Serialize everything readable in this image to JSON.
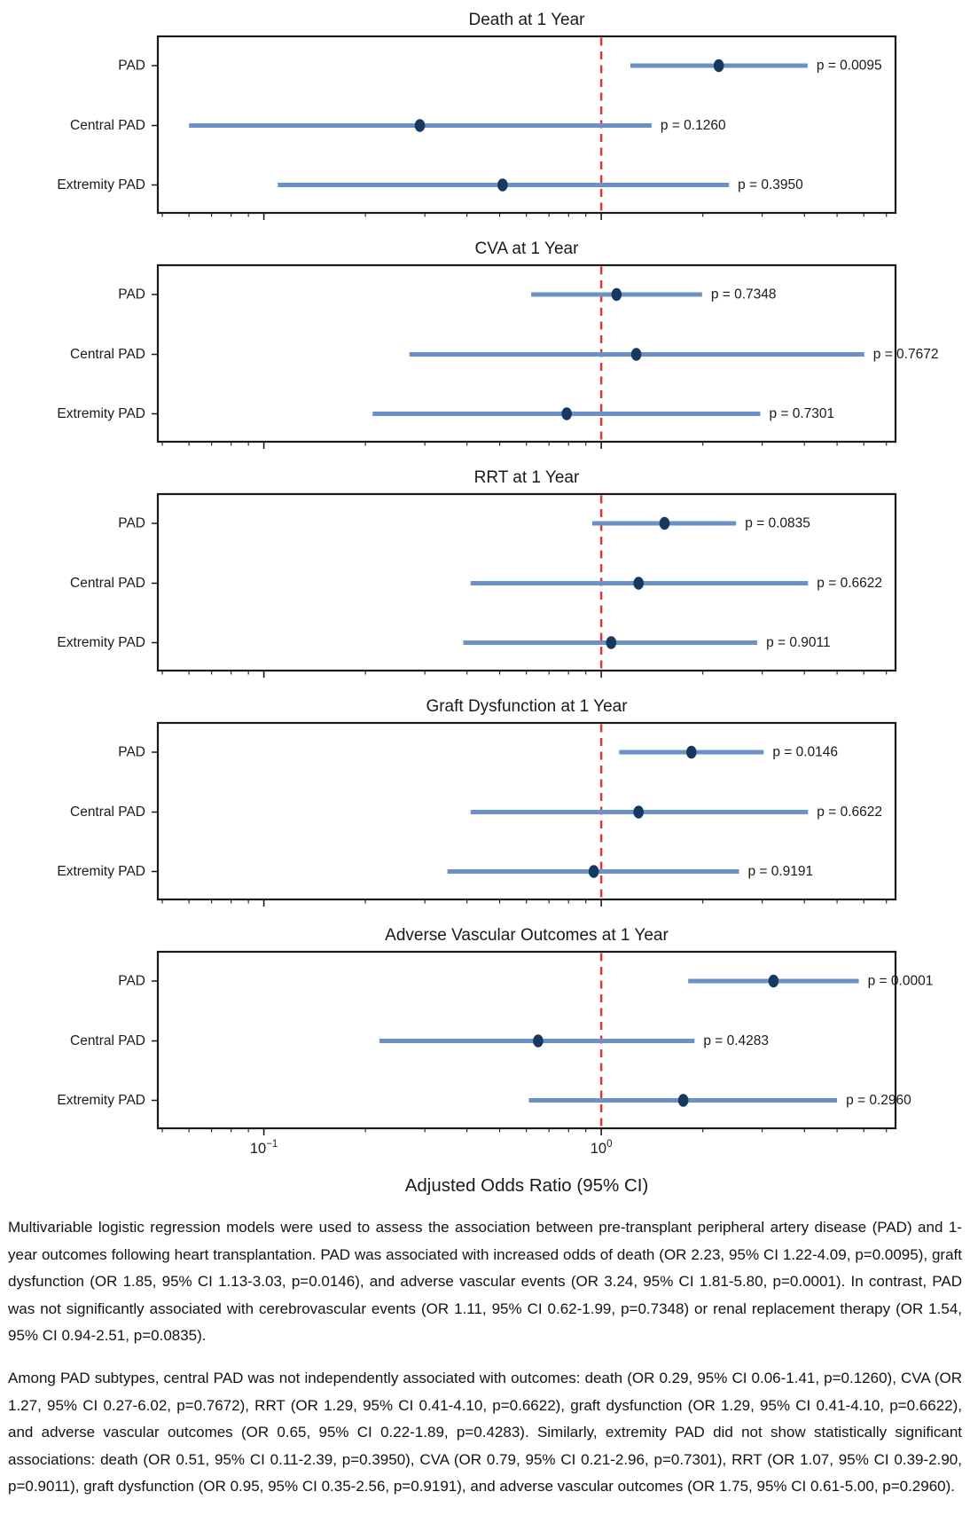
{
  "chart_data": {
    "type": "forest",
    "x_scale": "log",
    "xlim": [
      0.0485,
      7.45
    ],
    "reference_line": 1.0,
    "grid": false,
    "xlabel": "Adjusted Odds Ratio (95% CI)",
    "x_major_ticks": [
      {
        "value": 0.1,
        "base": "10",
        "exponent": "−1"
      },
      {
        "value": 1.0,
        "base": "10",
        "exponent": "0"
      }
    ],
    "row_labels": [
      "PAD",
      "Central PAD",
      "Extremity PAD"
    ],
    "panels": [
      {
        "title": "Death at 1 Year",
        "rows": [
          {
            "label": "PAD",
            "or": 2.23,
            "ci_low": 1.22,
            "ci_high": 4.09,
            "p_label": "p = 0.0095"
          },
          {
            "label": "Central PAD",
            "or": 0.29,
            "ci_low": 0.06,
            "ci_high": 1.41,
            "p_label": "p = 0.1260"
          },
          {
            "label": "Extremity PAD",
            "or": 0.51,
            "ci_low": 0.11,
            "ci_high": 2.39,
            "p_label": "p = 0.3950"
          }
        ]
      },
      {
        "title": "CVA at 1 Year",
        "rows": [
          {
            "label": "PAD",
            "or": 1.11,
            "ci_low": 0.62,
            "ci_high": 1.99,
            "p_label": "p = 0.7348"
          },
          {
            "label": "Central PAD",
            "or": 1.27,
            "ci_low": 0.27,
            "ci_high": 6.02,
            "p_label": "p = 0.7672"
          },
          {
            "label": "Extremity PAD",
            "or": 0.79,
            "ci_low": 0.21,
            "ci_high": 2.96,
            "p_label": "p = 0.7301"
          }
        ]
      },
      {
        "title": "RRT at 1 Year",
        "rows": [
          {
            "label": "PAD",
            "or": 1.54,
            "ci_low": 0.94,
            "ci_high": 2.51,
            "p_label": "p = 0.0835"
          },
          {
            "label": "Central PAD",
            "or": 1.29,
            "ci_low": 0.41,
            "ci_high": 4.1,
            "p_label": "p = 0.6622"
          },
          {
            "label": "Extremity PAD",
            "or": 1.07,
            "ci_low": 0.39,
            "ci_high": 2.9,
            "p_label": "p = 0.9011"
          }
        ]
      },
      {
        "title": "Graft Dysfunction at 1 Year",
        "rows": [
          {
            "label": "PAD",
            "or": 1.85,
            "ci_low": 1.13,
            "ci_high": 3.03,
            "p_label": "p = 0.0146"
          },
          {
            "label": "Central PAD",
            "or": 1.29,
            "ci_low": 0.41,
            "ci_high": 4.1,
            "p_label": "p = 0.6622"
          },
          {
            "label": "Extremity PAD",
            "or": 0.95,
            "ci_low": 0.35,
            "ci_high": 2.56,
            "p_label": "p = 0.9191"
          }
        ]
      },
      {
        "title": "Adverse Vascular Outcomes at 1 Year",
        "rows": [
          {
            "label": "PAD",
            "or": 3.24,
            "ci_low": 1.81,
            "ci_high": 5.8,
            "p_label": "p = 0.0001"
          },
          {
            "label": "Central PAD",
            "or": 0.65,
            "ci_low": 0.22,
            "ci_high": 1.89,
            "p_label": "p = 0.4283"
          },
          {
            "label": "Extremity PAD",
            "or": 1.75,
            "ci_low": 0.61,
            "ci_high": 5.0,
            "p_label": "p = 0.2960"
          }
        ]
      }
    ],
    "colors": {
      "marker": "#17395f",
      "ci_line": "#6b92c8",
      "reference": "#e53530",
      "frame": "#1a1a1a",
      "text": "#1a1a1a"
    }
  },
  "caption": {
    "paragraph1": "Multivariable logistic regression models were used to assess the association between pre-transplant peripheral artery disease (PAD) and 1-year outcomes following heart transplantation. PAD was associated with increased odds of death (OR 2.23, 95% CI 1.22-4.09, p=0.0095), graft dysfunction (OR 1.85, 95% CI 1.13-3.03, p=0.0146), and adverse vascular events (OR 3.24, 95% CI 1.81-5.80, p=0.0001). In contrast, PAD was not significantly associated with cerebrovascular events (OR 1.11, 95% CI 0.62-1.99, p=0.7348) or renal replacement therapy (OR 1.54, 95% CI 0.94-2.51, p=0.0835).",
    "paragraph2": "Among PAD subtypes, central PAD was not independently associated with outcomes: death (OR 0.29, 95% CI 0.06-1.41, p=0.1260), CVA (OR 1.27, 95% CI 0.27-6.02, p=0.7672), RRT (OR 1.29, 95% CI 0.41-4.10, p=0.6622), graft dysfunction (OR 1.29, 95% CI 0.41-4.10, p=0.6622), and adverse vascular outcomes (OR 0.65, 95% CI 0.22-1.89, p=0.4283). Similarly, extremity PAD did not show statistically significant associations: death (OR 0.51, 95% CI 0.11-2.39, p=0.3950), CVA (OR 0.79, 95% CI 0.21-2.96, p=0.7301), RRT (OR 1.07, 95% CI 0.39-2.90, p=0.9011), graft dysfunction (OR 0.95, 95% CI 0.35-2.56, p=0.9191), and adverse vascular outcomes (OR 1.75, 95% CI 0.61-5.00, p=0.2960)."
  }
}
